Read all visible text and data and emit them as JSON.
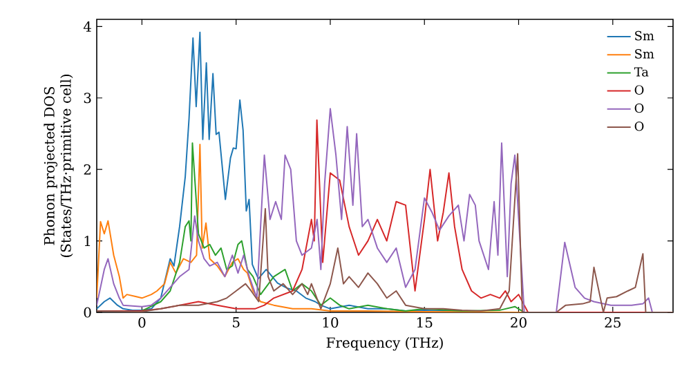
{
  "chart_data": {
    "type": "line",
    "xlabel": "Frequency (THz)",
    "ylabel": "Phonon projected DOS (States/THz·primitive cell)",
    "xlim": [
      -2.4,
      28.2
    ],
    "ylim": [
      0,
      4.1
    ],
    "xticks": [
      0,
      5,
      10,
      15,
      20,
      25
    ],
    "yticks": [
      0,
      1,
      2,
      3,
      4
    ],
    "grid": false,
    "legend": "top right",
    "series": [
      {
        "name": "Sm",
        "color": "#1f77b4",
        "x": [
          -2.4,
          -2.0,
          -1.7,
          -1.3,
          -1.0,
          -0.5,
          0,
          0.5,
          1.0,
          1.5,
          1.7,
          2.0,
          2.3,
          2.5,
          2.71,
          2.88,
          3.08,
          3.23,
          3.42,
          3.57,
          3.77,
          3.94,
          4.09,
          4.43,
          4.7,
          4.85,
          5.0,
          5.2,
          5.37,
          5.54,
          5.69,
          5.86,
          6.18,
          6.6,
          7.2,
          7.7,
          8.2,
          8.7,
          9.2,
          9.5,
          10,
          11,
          12,
          13,
          14,
          15,
          16,
          18
        ],
        "values": [
          0.05,
          0.15,
          0.2,
          0.1,
          0.05,
          0.03,
          0.03,
          0.05,
          0.2,
          0.75,
          0.65,
          1.2,
          1.9,
          2.71,
          3.84,
          2.88,
          3.92,
          2.42,
          3.49,
          2.42,
          3.34,
          2.49,
          2.52,
          1.58,
          2.16,
          2.3,
          2.29,
          2.97,
          2.55,
          1.42,
          1.58,
          0.67,
          0.47,
          0.6,
          0.41,
          0.34,
          0.3,
          0.2,
          0.15,
          0.1,
          0.05,
          0.1,
          0.05,
          0.05,
          0.02,
          0.03,
          0.02,
          0.01
        ]
      },
      {
        "name": "Sm",
        "color": "#ff7f0e",
        "x": [
          -2.4,
          -2.2,
          -2.0,
          -1.8,
          -1.5,
          -1.2,
          -1.0,
          -0.8,
          -0.3,
          0,
          0.5,
          0.8,
          1.2,
          1.5,
          1.8,
          2.2,
          2.6,
          2.9,
          3.08,
          3.2,
          3.4,
          3.6,
          4.0,
          4.4,
          4.8,
          5.1,
          5.4,
          5.6,
          5.9,
          6.3,
          7,
          8,
          9,
          10,
          12,
          15,
          20,
          27
        ],
        "values": [
          0.2,
          1.27,
          1.1,
          1.28,
          0.8,
          0.5,
          0.2,
          0.25,
          0.22,
          0.2,
          0.25,
          0.3,
          0.4,
          0.7,
          0.55,
          0.75,
          0.7,
          0.8,
          2.35,
          0.9,
          1.25,
          0.75,
          0.65,
          0.5,
          0.7,
          0.75,
          0.6,
          0.55,
          0.3,
          0.15,
          0.1,
          0.05,
          0.05,
          0.02,
          0.02,
          0.01,
          0.0,
          0.0
        ]
      },
      {
        "name": "Ta",
        "color": "#2ca02c",
        "x": [
          -2.4,
          0,
          1.0,
          1.5,
          2.0,
          2.3,
          2.5,
          2.6,
          2.68,
          3.0,
          3.3,
          3.6,
          3.9,
          4.2,
          4.5,
          4.8,
          5.1,
          5.3,
          5.6,
          5.9,
          6.3,
          7.0,
          7.6,
          8,
          8.5,
          9,
          9.5,
          10,
          10.5,
          11,
          12,
          13,
          14,
          15,
          17,
          19,
          19.8,
          20.3,
          27
        ],
        "values": [
          0.02,
          0.02,
          0.15,
          0.3,
          0.7,
          1.2,
          1.28,
          1.0,
          2.37,
          1.1,
          0.9,
          0.95,
          0.8,
          0.9,
          0.6,
          0.65,
          0.95,
          1.0,
          0.6,
          0.5,
          0.25,
          0.5,
          0.6,
          0.3,
          0.4,
          0.3,
          0.1,
          0.2,
          0.1,
          0.05,
          0.1,
          0.05,
          0.02,
          0.05,
          0.02,
          0.03,
          0.08,
          0.0,
          0.0
        ]
      },
      {
        "name": "O",
        "color": "#d62728",
        "x": [
          -2.4,
          0,
          1,
          2,
          3,
          4,
          5,
          6,
          6.5,
          7,
          7.5,
          8,
          8.5,
          9,
          9.15,
          9.29,
          9.6,
          10,
          10.5,
          11,
          11.5,
          12,
          12.5,
          13,
          13.5,
          14,
          14.5,
          15,
          15.3,
          15.7,
          16,
          16.3,
          16.6,
          17,
          17.5,
          18,
          18.5,
          19,
          19.3,
          19.6,
          20,
          20.3,
          20.5,
          27
        ],
        "values": [
          0.02,
          0.02,
          0.05,
          0.1,
          0.15,
          0.1,
          0.05,
          0.05,
          0.1,
          0.2,
          0.25,
          0.3,
          0.6,
          1.3,
          1.0,
          2.69,
          0.7,
          1.95,
          1.85,
          1.2,
          0.8,
          1.0,
          1.3,
          1.0,
          1.55,
          1.5,
          0.3,
          1.3,
          2.0,
          1.0,
          1.4,
          1.95,
          1.2,
          0.6,
          0.3,
          0.2,
          0.25,
          0.2,
          0.3,
          0.15,
          0.25,
          0.1,
          0.0,
          0.0
        ]
      },
      {
        "name": "O",
        "color": "#9467bd",
        "x": [
          -2.4,
          -2.0,
          -1.8,
          -1.5,
          -1.2,
          -1.0,
          0,
          0.5,
          1.0,
          1.5,
          2.0,
          2.5,
          2.8,
          3.0,
          3.3,
          3.6,
          4.0,
          4.4,
          4.8,
          5.1,
          5.4,
          5.7,
          6.1,
          6.5,
          6.8,
          7.1,
          7.4,
          7.6,
          7.9,
          8.2,
          8.5,
          9,
          9.3,
          9.5,
          9.7,
          10.0,
          10.3,
          10.6,
          10.9,
          11.2,
          11.4,
          11.7,
          12,
          12.5,
          13,
          13.5,
          14,
          14.5,
          15,
          15.4,
          15.8,
          16.3,
          16.8,
          17.1,
          17.4,
          17.7,
          17.9,
          18.4,
          18.7,
          18.9,
          19.1,
          19.4,
          19.6,
          19.8,
          20.3,
          22.0,
          22.45,
          23.0,
          23.5,
          24.0,
          24.9,
          26.0,
          26.6,
          26.9,
          27.1,
          28.2
        ],
        "values": [
          0.1,
          0.6,
          0.75,
          0.4,
          0.2,
          0.1,
          0.08,
          0.1,
          0.2,
          0.35,
          0.5,
          0.6,
          1.35,
          1.0,
          0.75,
          0.65,
          0.7,
          0.5,
          0.8,
          0.55,
          0.8,
          0.5,
          0.2,
          2.2,
          1.3,
          1.55,
          1.3,
          2.2,
          2.0,
          1.0,
          0.8,
          0.9,
          1.3,
          0.6,
          1.8,
          2.85,
          2.2,
          1.3,
          2.6,
          1.5,
          2.5,
          1.2,
          1.3,
          0.9,
          0.7,
          0.9,
          0.35,
          0.6,
          1.6,
          1.4,
          1.15,
          1.35,
          1.5,
          1.0,
          1.65,
          1.5,
          1.0,
          0.6,
          1.55,
          0.8,
          2.37,
          0.5,
          1.8,
          2.2,
          0.0,
          0.0,
          0.98,
          0.35,
          0.2,
          0.15,
          0.1,
          0.1,
          0.12,
          0.2,
          0.0,
          0.0
        ]
      },
      {
        "name": "O",
        "color": "#8c564b",
        "x": [
          -2.4,
          0,
          1,
          2,
          3,
          4,
          4.5,
          5.0,
          5.5,
          5.8,
          6.2,
          6.55,
          6.7,
          7.0,
          7.5,
          8,
          8.5,
          8.8,
          9.0,
          9.5,
          10,
          10.4,
          10.7,
          11,
          11.5,
          12,
          12.5,
          13,
          13.5,
          14,
          15,
          16,
          17,
          18,
          19,
          19.5,
          19.95,
          20.2,
          22,
          22.5,
          23.4,
          23.8,
          24.0,
          24.5,
          24.7,
          25.2,
          25.8,
          26.2,
          26.6,
          26.75,
          28.2
        ],
        "values": [
          0.02,
          0.01,
          0.05,
          0.1,
          0.1,
          0.15,
          0.2,
          0.3,
          0.4,
          0.3,
          0.15,
          1.45,
          0.5,
          0.3,
          0.4,
          0.25,
          0.4,
          0.25,
          0.4,
          0.05,
          0.4,
          0.9,
          0.4,
          0.5,
          0.35,
          0.55,
          0.4,
          0.2,
          0.3,
          0.1,
          0.05,
          0.05,
          0.03,
          0.02,
          0.05,
          0.3,
          2.22,
          0.0,
          0.0,
          0.1,
          0.12,
          0.15,
          0.63,
          0.0,
          0.2,
          0.22,
          0.3,
          0.35,
          0.82,
          0.0,
          0.0
        ]
      }
    ]
  }
}
